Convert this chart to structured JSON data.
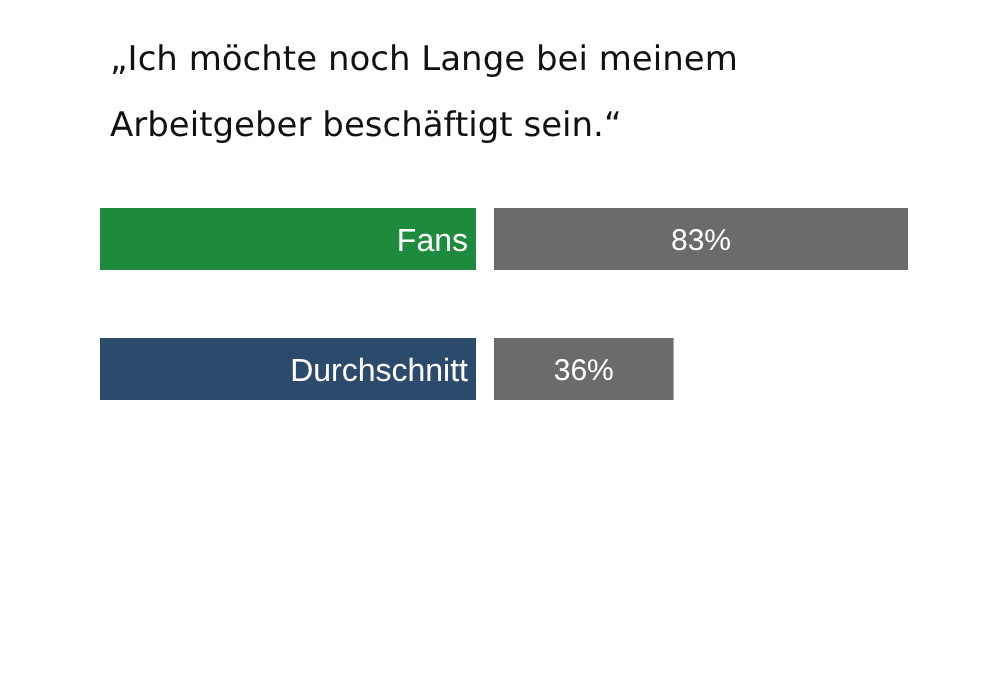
{
  "chart_data": {
    "type": "bar",
    "orientation": "horizontal",
    "title": "„Ich möchte noch Lange bei meinem Arbeitgeber beschäftigt sein.“",
    "categories": [
      "Fans",
      "Durchschnitt"
    ],
    "values": [
      83,
      36
    ],
    "value_labels": [
      "83%",
      "36%"
    ],
    "color": "#6b6b6b"
  }
}
